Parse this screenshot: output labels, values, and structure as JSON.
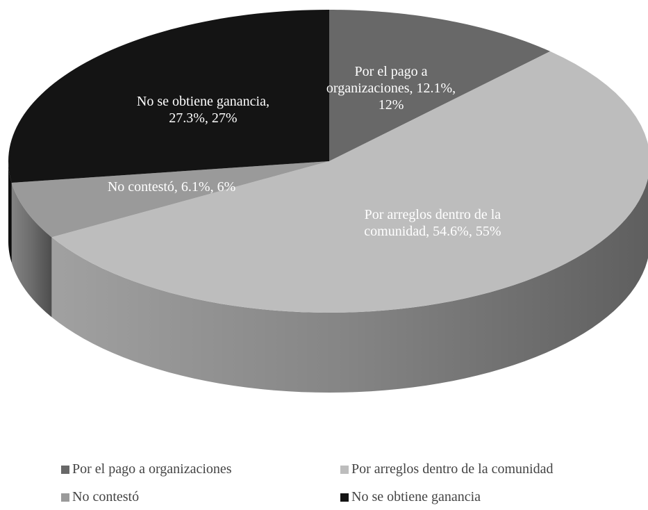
{
  "chart_data": {
    "type": "pie",
    "categories": [
      "Por el pago a organizaciones",
      "Por arreglos dentro de la comunidad",
      "No contestó",
      "No se obtiene ganancia"
    ],
    "values": [
      12.1,
      54.6,
      6.1,
      27.3
    ],
    "value_labels": [
      "Por el pago a organizaciones, 12.1%, 12%",
      "Por arreglos dentro de la comunidad, 54.6%, 55%",
      "No contestó, 6.1%, 6%",
      "No se obtiene ganancia, 27.3%, 27%"
    ],
    "colors": [
      "#686868",
      "#bdbdbd",
      "#9a9a9a",
      "#141414"
    ],
    "legend": "bottom"
  }
}
